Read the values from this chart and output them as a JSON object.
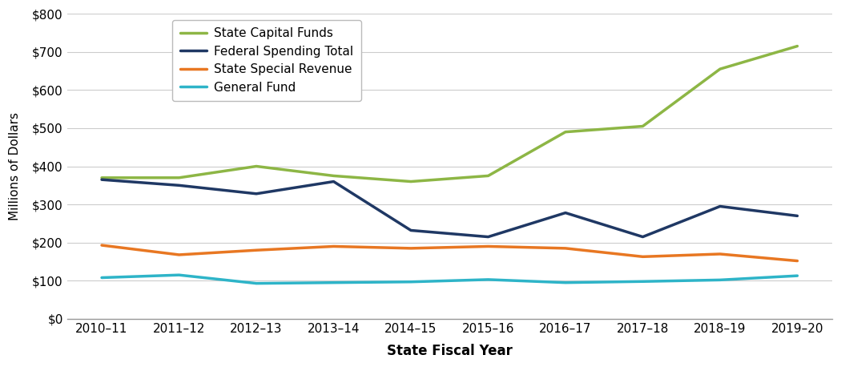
{
  "years": [
    "2010–11",
    "2011–12",
    "2012–13",
    "2013–14",
    "2014–15",
    "2015–16",
    "2016–17",
    "2017–18",
    "2018–19",
    "2019–20"
  ],
  "state_capital_funds": [
    370,
    370,
    400,
    375,
    360,
    375,
    490,
    505,
    655,
    715
  ],
  "federal_spending_total": [
    365,
    350,
    328,
    360,
    232,
    215,
    278,
    215,
    295,
    270
  ],
  "state_special_revenue": [
    193,
    168,
    180,
    190,
    185,
    190,
    185,
    163,
    170,
    152
  ],
  "general_fund": [
    108,
    115,
    93,
    95,
    97,
    103,
    95,
    98,
    102,
    113
  ],
  "colors": {
    "state_capital_funds": "#8DB645",
    "federal_spending_total": "#1F3864",
    "state_special_revenue": "#E87722",
    "general_fund": "#2EB4C8"
  },
  "legend_labels": [
    "State Capital Funds",
    "Federal Spending Total",
    "State Special Revenue",
    "General Fund"
  ],
  "ylabel": "Millions of Dollars",
  "xlabel": "State Fiscal Year",
  "ylim": [
    0,
    800
  ],
  "yticks": [
    0,
    100,
    200,
    300,
    400,
    500,
    600,
    700,
    800
  ],
  "line_width": 2.5,
  "background_color": "#ffffff",
  "grid_color": "#cccccc"
}
